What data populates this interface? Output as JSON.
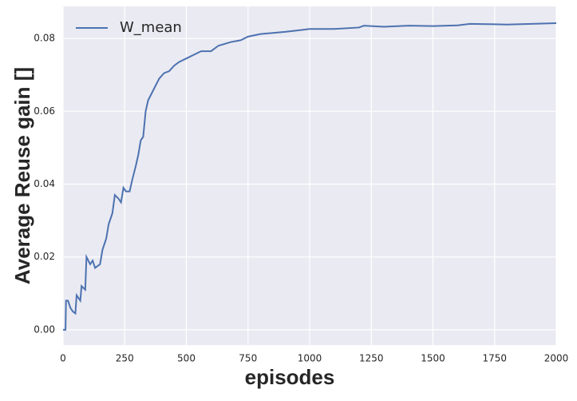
{
  "chart_data": {
    "type": "line",
    "xlabel": "episodes",
    "ylabel": "Average Reuse gain []",
    "x": [
      0,
      10,
      12,
      20,
      30,
      40,
      50,
      55,
      70,
      75,
      90,
      95,
      110,
      120,
      130,
      150,
      160,
      175,
      185,
      200,
      210,
      225,
      235,
      245,
      255,
      270,
      280,
      295,
      305,
      315,
      325,
      335,
      345,
      360,
      375,
      390,
      410,
      430,
      450,
      470,
      500,
      530,
      560,
      600,
      630,
      680,
      720,
      750,
      800,
      850,
      900,
      950,
      1000,
      1100,
      1200,
      1220,
      1300,
      1400,
      1500,
      1600,
      1650,
      1750,
      1800,
      1900,
      2000
    ],
    "series": [
      {
        "name": "W_mean",
        "color": "#4c72b0",
        "values": [
          0,
          0,
          0.008,
          0.008,
          0.006,
          0.005,
          0.0045,
          0.0095,
          0.008,
          0.012,
          0.011,
          0.02,
          0.018,
          0.019,
          0.017,
          0.018,
          0.022,
          0.025,
          0.029,
          0.032,
          0.037,
          0.036,
          0.035,
          0.039,
          0.038,
          0.038,
          0.041,
          0.045,
          0.048,
          0.052,
          0.053,
          0.06,
          0.063,
          0.065,
          0.067,
          0.069,
          0.0705,
          0.071,
          0.0725,
          0.0735,
          0.0745,
          0.0755,
          0.0765,
          0.0765,
          0.078,
          0.079,
          0.0795,
          0.0805,
          0.0812,
          0.0815,
          0.0818,
          0.0822,
          0.0826,
          0.0826,
          0.083,
          0.0835,
          0.0832,
          0.0835,
          0.0834,
          0.0836,
          0.084,
          0.0839,
          0.0838,
          0.084,
          0.0842
        ]
      }
    ],
    "xlim": [
      0,
      2000
    ],
    "xticks": [
      0,
      250,
      500,
      750,
      1000,
      1250,
      1500,
      1750,
      2000
    ],
    "ylim": [
      -0.0042,
      0.0888
    ],
    "yticks": [
      {
        "value": 0,
        "label": "0.00"
      },
      {
        "value": 0.02,
        "label": "0.02"
      },
      {
        "value": 0.04,
        "label": "0.04"
      },
      {
        "value": 0.06,
        "label": "0.06"
      },
      {
        "value": 0.08,
        "label": "0.08"
      }
    ],
    "grid": true,
    "legend": "upper-left"
  }
}
